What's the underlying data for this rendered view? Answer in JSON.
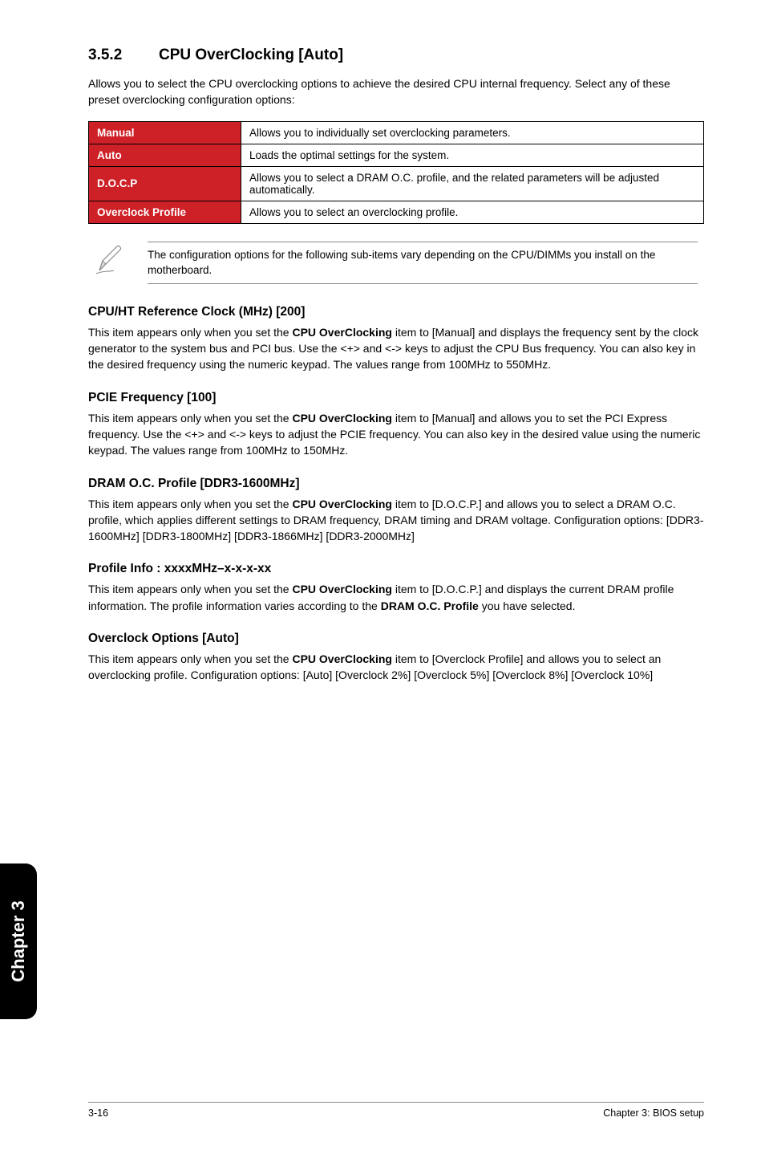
{
  "section": {
    "number": "3.5.2",
    "title": "CPU OverClocking [Auto]",
    "intro": "Allows you to select the CPU overclocking options to achieve the desired CPU internal frequency. Select any of these preset overclocking configuration options:"
  },
  "param_table": {
    "rows": [
      {
        "key": "Manual",
        "desc": "Allows you to individually set overclocking parameters."
      },
      {
        "key": "Auto",
        "desc": "Loads the optimal settings for the system."
      },
      {
        "key": "D.O.C.P",
        "desc": "Allows you to select a DRAM O.C. profile, and the related parameters will be adjusted automatically."
      },
      {
        "key": "Overclock Profile",
        "desc": "Allows you to select an overclocking profile."
      }
    ],
    "key_bg_color": "#cd2027",
    "key_text_color": "#ffffff",
    "border_color": "#000000",
    "font_size": 13.5
  },
  "note": "The configuration options for the following sub-items vary depending on the CPU/DIMMs you install on the motherboard.",
  "subsections": [
    {
      "heading": "CPU/HT Reference Clock (MHz) [200]",
      "parts": [
        {
          "t": "This item appears only when you set the "
        },
        {
          "t": "CPU OverClocking",
          "b": true
        },
        {
          "t": " item to [Manual] and displays the frequency sent by the clock generator to the system bus and PCI bus. Use the <+> and <-> keys to adjust the CPU Bus frequency. You can also key in the desired frequency using the numeric keypad. The values range from 100MHz to 550MHz."
        }
      ]
    },
    {
      "heading": "PCIE Frequency [100]",
      "parts": [
        {
          "t": "This item appears only when you set the "
        },
        {
          "t": "CPU OverClocking",
          "b": true
        },
        {
          "t": " item to [Manual] and allows you to set the PCI Express frequency. Use the <+> and <-> keys to adjust the PCIE frequency. You can also key in the desired value using the numeric keypad. The values range from 100MHz to 150MHz."
        }
      ]
    },
    {
      "heading": "DRAM O.C. Profile [DDR3-1600MHz]",
      "parts": [
        {
          "t": "This item appears only when you set the "
        },
        {
          "t": "CPU OverClocking",
          "b": true
        },
        {
          "t": " item to [D.O.C.P.] and allows you to select a DRAM O.C. profile, which applies different settings to DRAM frequency, DRAM timing and DRAM voltage. Configuration options: [DDR3-1600MHz] [DDR3-1800MHz] [DDR3-1866MHz] [DDR3-2000MHz]"
        }
      ]
    },
    {
      "heading": "Profile Info : xxxxMHz–x-x-x-xx",
      "parts": [
        {
          "t": "This item appears only when you set the "
        },
        {
          "t": "CPU OverClocking",
          "b": true
        },
        {
          "t": " item to [D.O.C.P.] and displays the current DRAM profile information. The profile information varies according to the "
        },
        {
          "t": "DRAM O.C. Profile",
          "b": true
        },
        {
          "t": " you have selected."
        }
      ]
    },
    {
      "heading": "Overclock Options [Auto]",
      "parts": [
        {
          "t": "This item appears only when you set the "
        },
        {
          "t": "CPU OverClocking",
          "b": true
        },
        {
          "t": " item to [Overclock Profile] and allows you to select an overclocking profile. Configuration options: [Auto] [Overclock 2%] [Overclock 5%] [Overclock 8%] [Overclock 10%]"
        }
      ]
    }
  ],
  "side_tab": "Chapter 3",
  "footer": {
    "left": "3-16",
    "right": "Chapter 3: BIOS setup"
  }
}
